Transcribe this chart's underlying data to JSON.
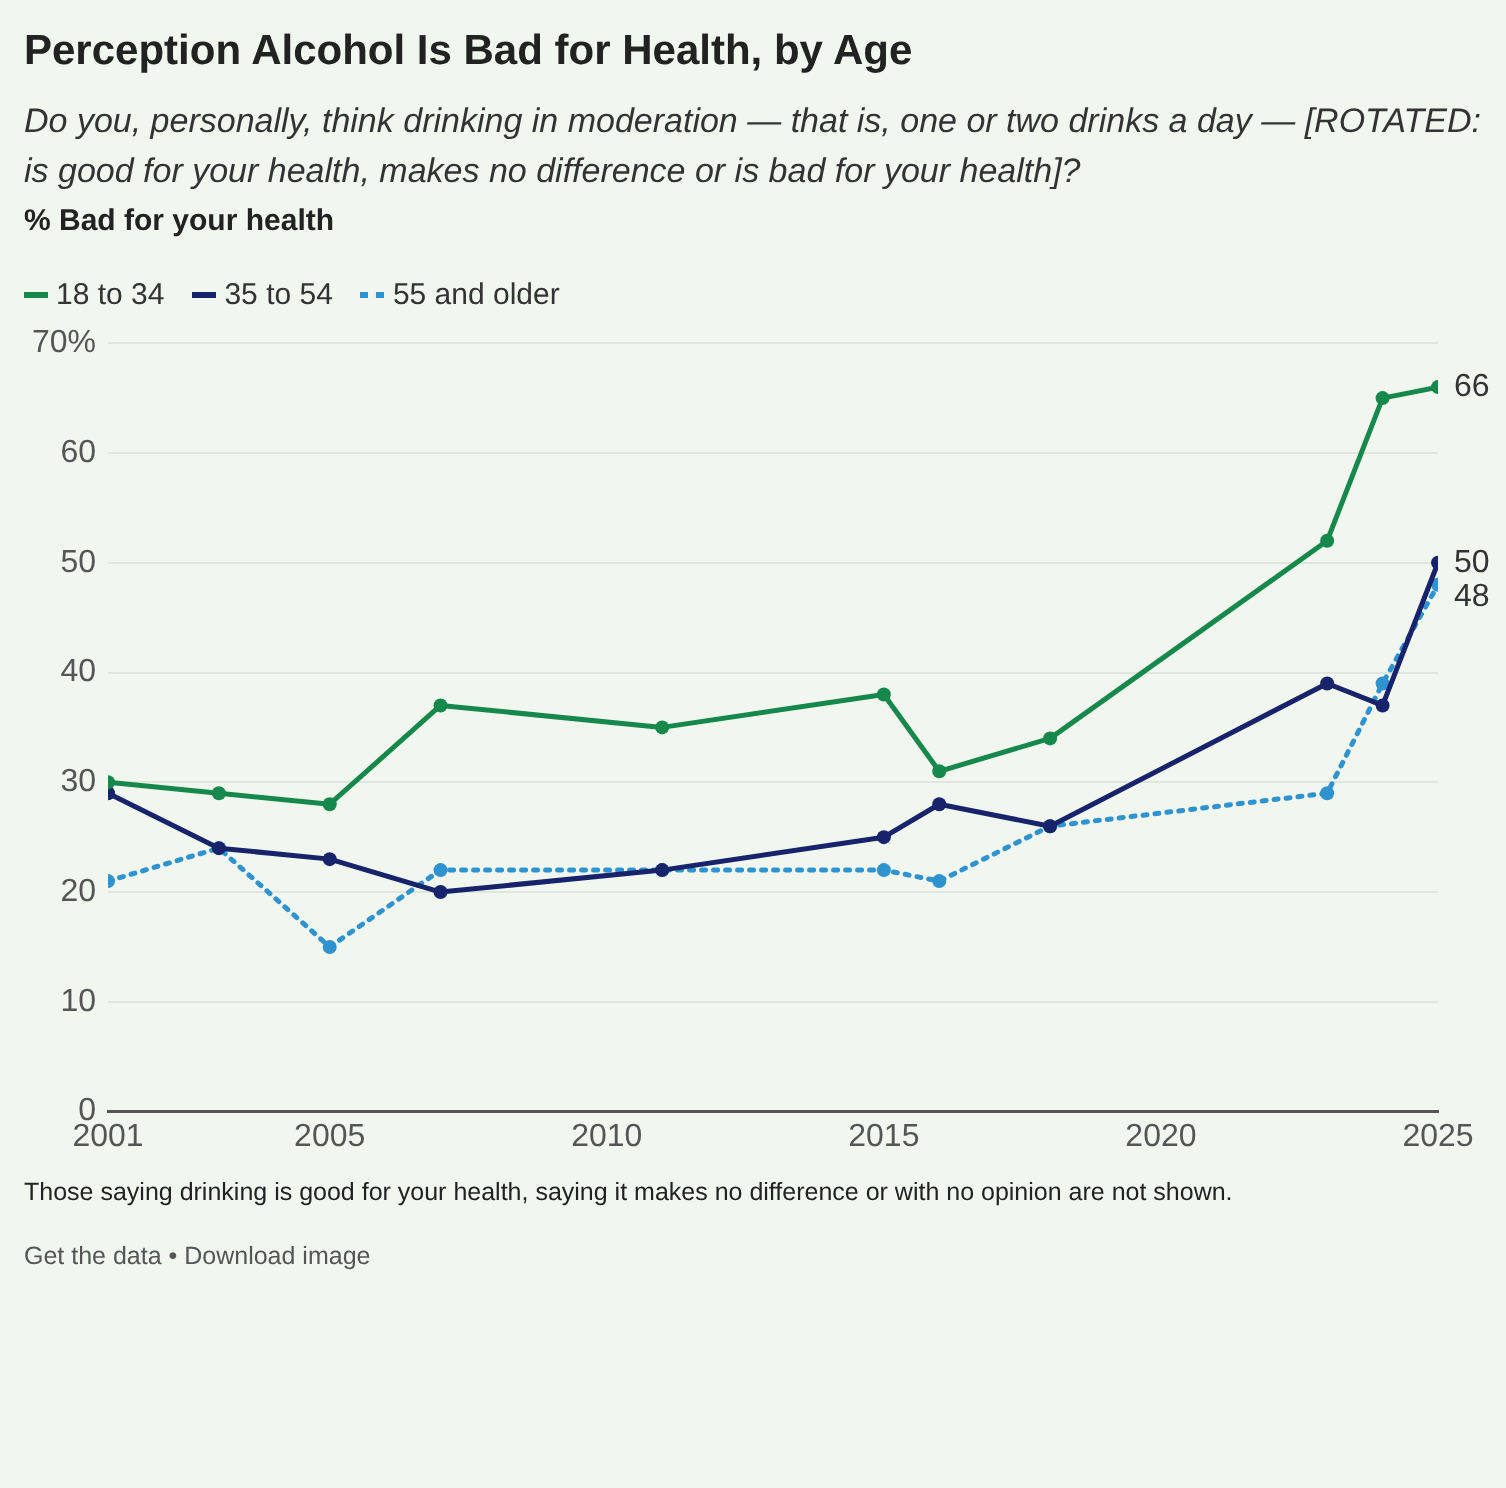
{
  "chart_data": {
    "type": "line",
    "title": "Perception Alcohol Is Bad for Health, by Age",
    "subtitle": "Do you, personally, think drinking in moderation — that is, one or two drinks a day — [ROTATED: is good for your health, makes no difference or is bad for your health]?",
    "ylabel": "% Bad for your health",
    "x": [
      2001,
      2003,
      2005,
      2007,
      2011,
      2015,
      2016,
      2018,
      2023,
      2024,
      2025
    ],
    "series": [
      {
        "name": "18 to 34",
        "color": "#16884c",
        "line_style": "solid",
        "values": [
          30,
          29,
          28,
          37,
          35,
          38,
          31,
          34,
          52,
          65,
          66
        ],
        "value_labels": [
          null,
          null,
          null,
          null,
          null,
          null,
          null,
          null,
          null,
          null,
          "66"
        ]
      },
      {
        "name": "35 to 54",
        "color": "#17236b",
        "line_style": "solid",
        "values": [
          29,
          24,
          23,
          20,
          22,
          25,
          28,
          26,
          39,
          37,
          50
        ],
        "value_labels": [
          null,
          null,
          null,
          null,
          null,
          null,
          null,
          null,
          null,
          null,
          "50"
        ]
      },
      {
        "name": "55 and older",
        "color": "#2f93d0",
        "line_style": "dotted",
        "values": [
          21,
          24,
          15,
          22,
          22,
          22,
          21,
          26,
          29,
          39,
          48
        ],
        "value_labels": [
          null,
          null,
          null,
          null,
          null,
          null,
          null,
          null,
          null,
          null,
          "48"
        ]
      }
    ],
    "xlim": [
      2001,
      2025
    ],
    "xticks": [
      2001,
      2005,
      2010,
      2015,
      2020,
      2025
    ],
    "ylim": [
      0,
      70
    ],
    "yticks": [
      0,
      10,
      20,
      30,
      40,
      50,
      60,
      {
        "value": 70,
        "label": "70%"
      }
    ],
    "grid": "y",
    "legend": "top left",
    "marker": "circle",
    "annotations": [
      "Those saying drinking is good for your health, saying it makes no difference or with no opinion are not shown.",
      "Get the data • Download image"
    ]
  }
}
